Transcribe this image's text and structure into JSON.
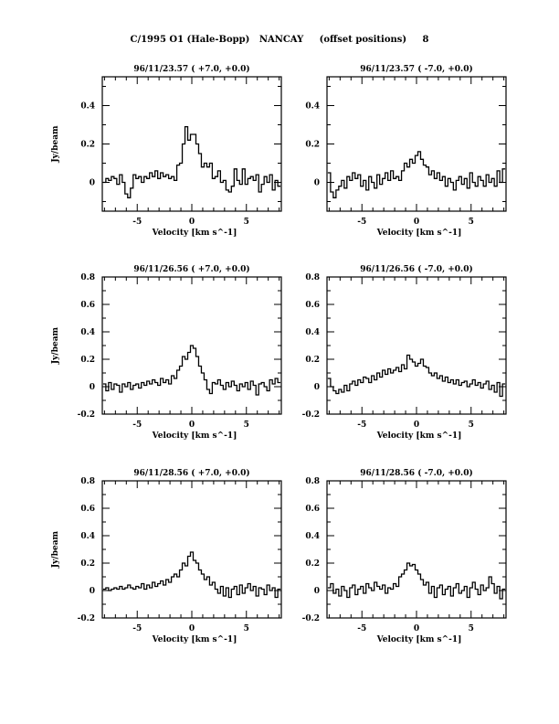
{
  "title": "C/1995 O1 (Hale-Bopp)   NANCAY     (offset positions)     8",
  "chart_data": [
    {
      "type": "line",
      "title": "96/11/23.57  ( +7.0, +0.0)",
      "xlabel": "Velocity [km s^-1]",
      "ylabel": "Jy/beam",
      "xlim": [
        -8.2,
        8.2
      ],
      "ylim": [
        -0.15,
        0.55
      ],
      "yticks": [
        0,
        0.2,
        0.4
      ],
      "xticks": [
        -5,
        0,
        5
      ],
      "x_start": -8,
      "x_step": 0.25,
      "values": [
        0,
        0.02,
        0.01,
        0.03,
        0.02,
        -0.01,
        0.04,
        0,
        -0.06,
        -0.08,
        -0.03,
        0.04,
        0.02,
        0.03,
        0,
        0.03,
        0.02,
        0.05,
        0.03,
        0.06,
        0.02,
        0.05,
        0.03,
        0.04,
        0.02,
        0.03,
        0.01,
        0.09,
        0.1,
        0.2,
        0.29,
        0.22,
        0.25,
        0.25,
        0.2,
        0.15,
        0.08,
        0.1,
        0.08,
        0.1,
        0.02,
        0.03,
        0.06,
        0,
        0.01,
        -0.04,
        -0.05,
        -0.02,
        0.07,
        0.01,
        -0.01,
        0.07,
        -0.01,
        0.02,
        0.03,
        0.01,
        0.04,
        -0.05,
        -0.01,
        0.03,
        0,
        0.04,
        -0.04,
        0.01,
        -0.02
      ]
    },
    {
      "type": "line",
      "title": "96/11/23.57  ( -7.0, +0.0)",
      "xlabel": "Velocity [km s^-1]",
      "ylabel": "",
      "xlim": [
        -8.2,
        8.2
      ],
      "ylim": [
        -0.15,
        0.55
      ],
      "yticks": [
        0,
        0.2,
        0.4
      ],
      "xticks": [
        -5,
        0,
        5
      ],
      "x_start": -8,
      "x_step": 0.25,
      "values": [
        0.05,
        -0.05,
        -0.08,
        -0.04,
        -0.02,
        0.01,
        -0.03,
        0.03,
        0.01,
        0.05,
        0.02,
        0.04,
        -0.02,
        0.01,
        -0.04,
        0.03,
        0,
        -0.03,
        0.04,
        -0.01,
        0.02,
        0.05,
        0.01,
        0.06,
        0.02,
        0.03,
        0.01,
        0.06,
        0.1,
        0.08,
        0.12,
        0.1,
        0.14,
        0.16,
        0.12,
        0.09,
        0.08,
        0.04,
        0.06,
        0.02,
        0.05,
        0.01,
        0.03,
        -0.02,
        0.02,
        0,
        -0.04,
        0.01,
        0.03,
        -0.01,
        0.02,
        -0.03,
        0.05,
        0,
        -0.02,
        0.03,
        0.01,
        -0.02,
        0.04,
        0,
        0.02,
        -0.02,
        0.06,
        0,
        0.07
      ]
    },
    {
      "type": "line",
      "title": "96/11/26.56  ( +7.0, +0.0)",
      "xlabel": "Velocity [km s^-1]",
      "ylabel": "Jy/beam",
      "xlim": [
        -8.2,
        8.2
      ],
      "ylim": [
        -0.2,
        0.8
      ],
      "yticks": [
        -0.2,
        0,
        0.2,
        0.4,
        0.6,
        0.8
      ],
      "xticks": [
        -5,
        0,
        5
      ],
      "x_start": -8,
      "x_step": 0.25,
      "values": [
        0.02,
        -0.03,
        0.03,
        -0.02,
        0.02,
        0.01,
        -0.04,
        0.02,
        0,
        0.03,
        -0.02,
        0.01,
        0.02,
        -0.01,
        0.03,
        0.01,
        0.04,
        0.02,
        0.05,
        0.03,
        0.01,
        0.06,
        0.03,
        0.05,
        0.02,
        0.08,
        0.06,
        0.12,
        0.15,
        0.22,
        0.2,
        0.25,
        0.3,
        0.28,
        0.22,
        0.15,
        0.1,
        0.05,
        -0.02,
        -0.05,
        0.03,
        0.02,
        0.05,
        0.01,
        -0.02,
        0.03,
        0,
        0.04,
        0.01,
        -0.03,
        0.02,
        0,
        0.03,
        -0.02,
        0.04,
        0.01,
        -0.06,
        0.02,
        0.03,
        0,
        -0.03,
        0.05,
        0.02,
        0.06,
        0.03
      ]
    },
    {
      "type": "line",
      "title": "96/11/26.56  ( -7.0, +0.0)",
      "xlabel": "Velocity [km s^-1]",
      "ylabel": "",
      "xlim": [
        -8.2,
        8.2
      ],
      "ylim": [
        -0.2,
        0.8
      ],
      "yticks": [
        -0.2,
        0,
        0.2,
        0.4,
        0.6,
        0.8
      ],
      "xticks": [
        -5,
        0,
        5
      ],
      "x_start": -8,
      "x_step": 0.25,
      "values": [
        0.06,
        0,
        -0.03,
        -0.05,
        -0.02,
        -0.04,
        0.01,
        -0.03,
        0.02,
        0.04,
        0.01,
        0.05,
        0.03,
        0.07,
        0.06,
        0.03,
        0.08,
        0.05,
        0.1,
        0.07,
        0.12,
        0.09,
        0.13,
        0.1,
        0.12,
        0.14,
        0.11,
        0.16,
        0.13,
        0.23,
        0.2,
        0.18,
        0.15,
        0.17,
        0.2,
        0.15,
        0.14,
        0.1,
        0.08,
        0.1,
        0.06,
        0.08,
        0.04,
        0.07,
        0.03,
        0.05,
        0.02,
        0.05,
        0.01,
        0.03,
        0.04,
        0,
        0.02,
        0.05,
        0.01,
        0.03,
        -0.01,
        0.02,
        0.04,
        -0.02,
        0.01,
        -0.04,
        0.03,
        -0.07,
        0.02
      ]
    },
    {
      "type": "line",
      "title": "96/11/28.56  ( +7.0, +0.0)",
      "xlabel": "Velocity [km s^-1]",
      "ylabel": "Jy/beam",
      "xlim": [
        -8.2,
        8.2
      ],
      "ylim": [
        -0.2,
        0.8
      ],
      "yticks": [
        -0.2,
        0,
        0.2,
        0.4,
        0.6,
        0.8
      ],
      "xticks": [
        -5,
        0,
        5
      ],
      "x_start": -8,
      "x_step": 0.25,
      "values": [
        0.01,
        0.02,
        0,
        0.01,
        0.02,
        0.01,
        0.03,
        0.01,
        0.02,
        0.04,
        0.02,
        0.01,
        0.03,
        0.02,
        0.05,
        0.01,
        0.04,
        0.02,
        0.06,
        0.03,
        0.05,
        0.07,
        0.04,
        0.08,
        0.06,
        0.1,
        0.12,
        0.1,
        0.15,
        0.2,
        0.18,
        0.25,
        0.28,
        0.22,
        0.2,
        0.15,
        0.12,
        0.08,
        0.1,
        0.04,
        0.06,
        0.01,
        -0.02,
        0.03,
        -0.04,
        0.02,
        -0.05,
        0.01,
        0.03,
        -0.03,
        0.04,
        -0.02,
        0.02,
        0.05,
        0,
        0.03,
        -0.04,
        0.02,
        0.01,
        -0.03,
        0.04,
        0,
        0.02,
        -0.05,
        0.01
      ]
    },
    {
      "type": "line",
      "title": "96/11/28.56  ( -7.0, +0.0)",
      "xlabel": "Velocity [km s^-1]",
      "ylabel": "",
      "xlim": [
        -8.2,
        8.2
      ],
      "ylim": [
        -0.2,
        0.8
      ],
      "yticks": [
        -0.2,
        0,
        0.2,
        0.4,
        0.6,
        0.8
      ],
      "xticks": [
        -5,
        0,
        5
      ],
      "x_start": -8,
      "x_step": 0.25,
      "values": [
        0.02,
        0.05,
        -0.02,
        0.01,
        -0.04,
        0.03,
        0,
        -0.05,
        0.02,
        0.04,
        -0.03,
        0.01,
        0.03,
        -0.02,
        0.05,
        0.02,
        0,
        0.06,
        0.03,
        0.01,
        0.04,
        -0.02,
        0.02,
        0.01,
        0.05,
        0.03,
        0.1,
        0.12,
        0.15,
        0.2,
        0.18,
        0.19,
        0.15,
        0.12,
        0.08,
        0.04,
        0.06,
        -0.02,
        0.03,
        -0.05,
        0.02,
        0.04,
        -0.03,
        0.01,
        0.03,
        -0.04,
        0.02,
        0.05,
        -0.02,
        0,
        0.03,
        -0.05,
        0.02,
        0.06,
        0.01,
        -0.03,
        0.04,
        0,
        0.02,
        0.1,
        0.05,
        -0.02,
        0.03,
        -0.06,
        0.01
      ]
    }
  ]
}
